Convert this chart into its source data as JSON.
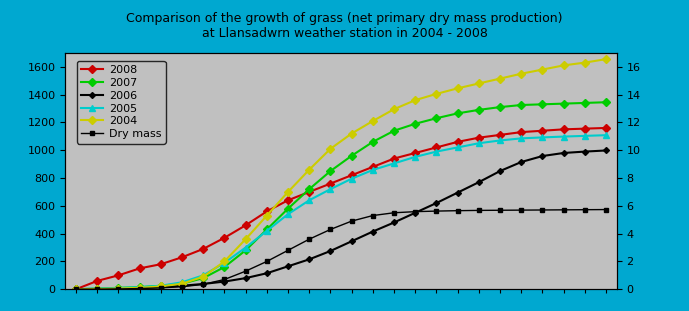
{
  "title_line1": "Comparison of the growth of grass (net primary dry mass production)",
  "title_line2": "at Llansadwrn weather station in 2004 - 2008",
  "background_color": "#c0c0c0",
  "outer_background": "#00a8d0",
  "ylim_left": [
    0,
    1700
  ],
  "ylim_right": [
    0,
    17
  ],
  "yticks_left": [
    0,
    200,
    400,
    600,
    800,
    1000,
    1200,
    1400,
    1600
  ],
  "yticks_right": [
    0,
    2,
    4,
    6,
    8,
    10,
    12,
    14,
    16
  ],
  "num_points": 26,
  "series": {
    "2008": {
      "color": "#cc0000",
      "marker": "D",
      "markersize": 4,
      "linewidth": 1.5,
      "values": [
        0,
        60,
        100,
        150,
        180,
        230,
        290,
        370,
        460,
        560,
        640,
        700,
        760,
        820,
        880,
        940,
        980,
        1020,
        1060,
        1090,
        1110,
        1130,
        1140,
        1150,
        1155,
        1160
      ]
    },
    "2007": {
      "color": "#00cc00",
      "marker": "D",
      "markersize": 4,
      "linewidth": 1.5,
      "values": [
        0,
        5,
        10,
        15,
        25,
        40,
        80,
        160,
        280,
        430,
        580,
        720,
        850,
        960,
        1060,
        1140,
        1190,
        1230,
        1265,
        1290,
        1310,
        1325,
        1330,
        1335,
        1340,
        1345
      ]
    },
    "2006": {
      "color": "#000000",
      "marker": "D",
      "markersize": 3,
      "linewidth": 1.5,
      "values": [
        0,
        0,
        5,
        10,
        15,
        25,
        38,
        55,
        80,
        115,
        165,
        215,
        275,
        345,
        415,
        480,
        550,
        620,
        695,
        770,
        850,
        915,
        958,
        980,
        990,
        998
      ]
    },
    "2005": {
      "color": "#00cccc",
      "marker": "^",
      "markersize": 4,
      "linewidth": 1.5,
      "values": [
        0,
        5,
        8,
        15,
        25,
        50,
        100,
        190,
        300,
        420,
        540,
        640,
        720,
        795,
        858,
        905,
        952,
        990,
        1020,
        1050,
        1070,
        1085,
        1092,
        1098,
        1103,
        1108
      ]
    },
    "2004": {
      "color": "#cccc00",
      "marker": "D",
      "markersize": 4,
      "linewidth": 1.5,
      "values": [
        0,
        2,
        5,
        10,
        20,
        40,
        90,
        200,
        360,
        530,
        700,
        860,
        1010,
        1120,
        1210,
        1295,
        1360,
        1405,
        1445,
        1480,
        1515,
        1550,
        1580,
        1610,
        1630,
        1655
      ]
    },
    "Dry mass": {
      "color": "#000000",
      "marker": "s",
      "markersize": 3,
      "linewidth": 1.0,
      "values": [
        0,
        0,
        2,
        5,
        10,
        18,
        35,
        70,
        130,
        200,
        280,
        360,
        430,
        490,
        530,
        550,
        558,
        562,
        565,
        567,
        568,
        569,
        570,
        571,
        572,
        573
      ]
    }
  }
}
